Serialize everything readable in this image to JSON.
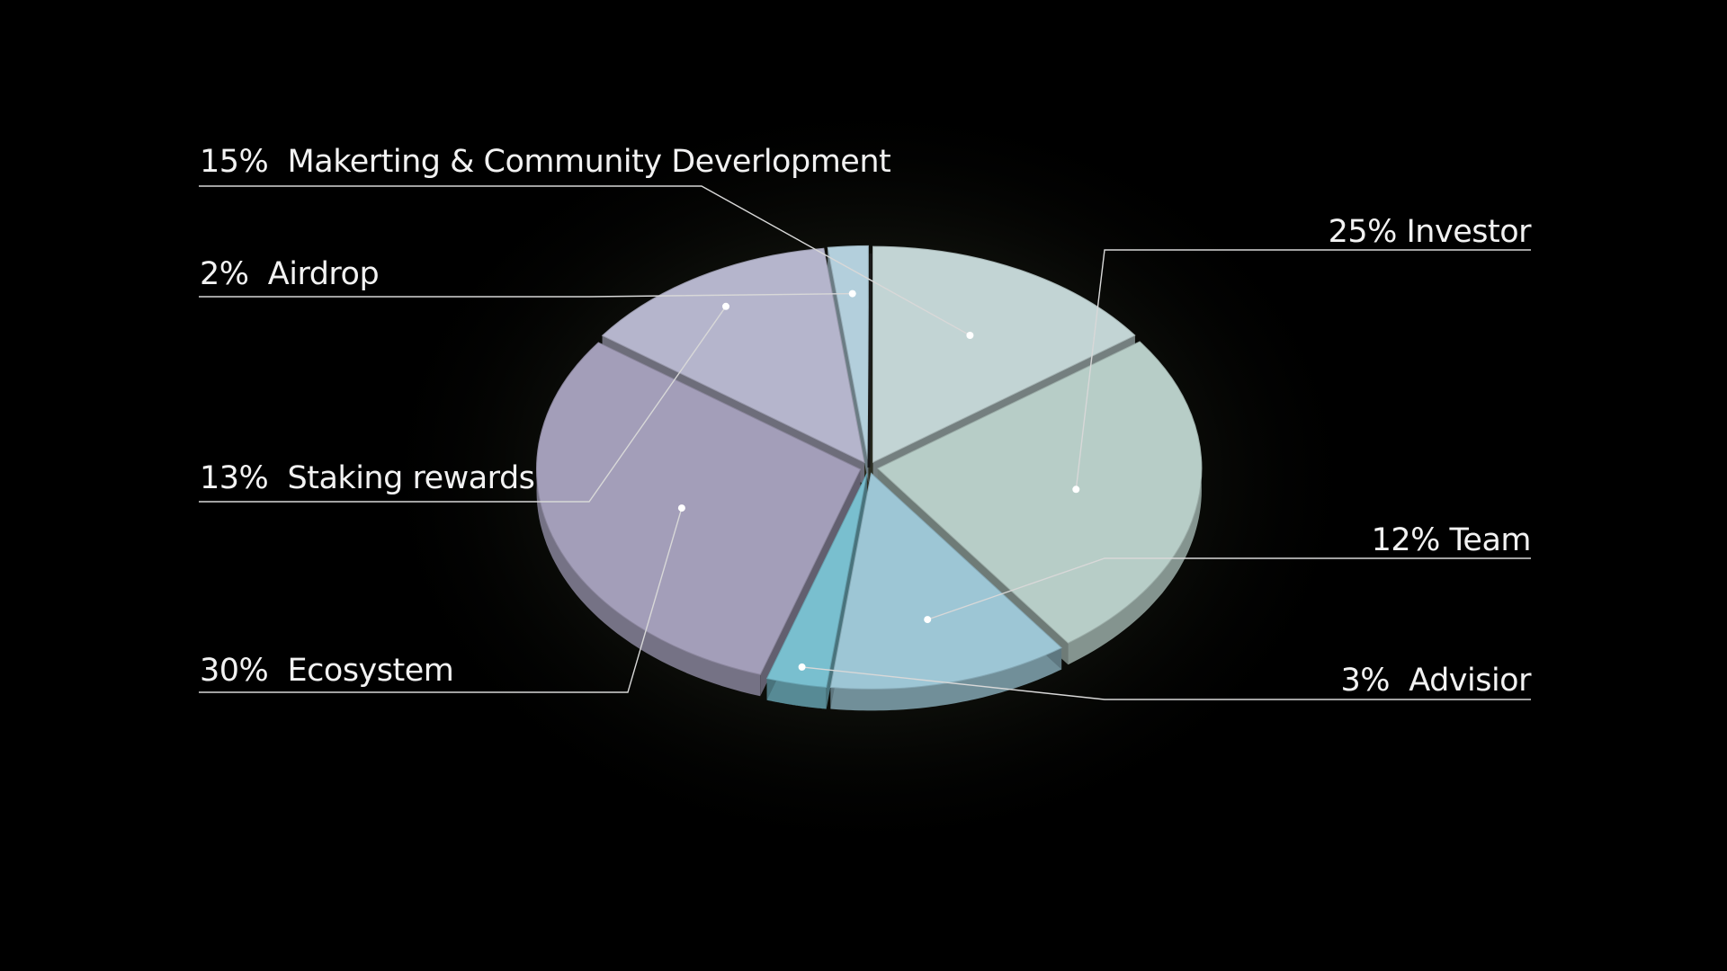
{
  "chart_data": {
    "type": "pie",
    "title": "",
    "slices": [
      {
        "label": "15%  Makerting & Community Deverlopment",
        "value": 15,
        "color": "#c2d4d4"
      },
      {
        "label": "25% Investor",
        "value": 25,
        "color": "#b7cdc7"
      },
      {
        "label": "12% Team",
        "value": 12,
        "color": "#9dc6d5"
      },
      {
        "label": "3%  Advisior",
        "value": 3,
        "color": "#79bfcf"
      },
      {
        "label": "30%  Ecosystem",
        "value": 30,
        "color": "#a39eb9"
      },
      {
        "label": "13%  Staking rewards",
        "value": 13,
        "color": "#b5b5cc"
      },
      {
        "label": "2%  Airdrop",
        "value": 2,
        "color": "#b3cfdc"
      }
    ],
    "legend": "leader-line labels around pie",
    "background": "#000000"
  }
}
